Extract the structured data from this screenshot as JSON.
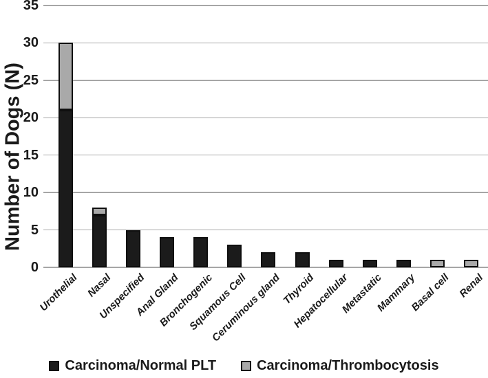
{
  "figure": {
    "background": "#ffffff",
    "text_color": "#1a1a1a"
  },
  "chart_data": {
    "type": "bar",
    "stacked": true,
    "title": "",
    "xlabel": "",
    "ylabel": "Number of Dogs (N)",
    "ylim": [
      0,
      35
    ],
    "yticks": [
      0,
      5,
      10,
      15,
      20,
      25,
      30,
      35
    ],
    "grid": true,
    "legend_position": "bottom",
    "categories": [
      "Urothelial",
      "Nasal",
      "Unspecified",
      "Anal Gland",
      "Bronchogenic",
      "Squamous Cell",
      "Ceruminous gland",
      "Thyroid",
      "Hepatocellular",
      "Metastatic",
      "Mammary",
      "Basal cell",
      "Renal"
    ],
    "series": [
      {
        "name": "Carcinoma/Normal PLT",
        "color": "#1b1b1b",
        "values": [
          21,
          7,
          5,
          4,
          4,
          3,
          2,
          2,
          1,
          1,
          1,
          0,
          0
        ]
      },
      {
        "name": "Carcinoma/Thrombocytosis",
        "color": "#a9a9a9",
        "values": [
          9,
          1,
          0,
          0,
          0,
          0,
          0,
          0,
          0,
          0,
          0,
          1,
          1
        ]
      }
    ],
    "totals": [
      30,
      8,
      5,
      4,
      4,
      3,
      2,
      2,
      1,
      1,
      1,
      1,
      1
    ]
  },
  "colors": {
    "grid_line": "#a6a6a6",
    "bar_border": "#0f0f0f",
    "normal_plt": "#1b1b1b",
    "thrombocytosis": "#a9a9a9"
  }
}
